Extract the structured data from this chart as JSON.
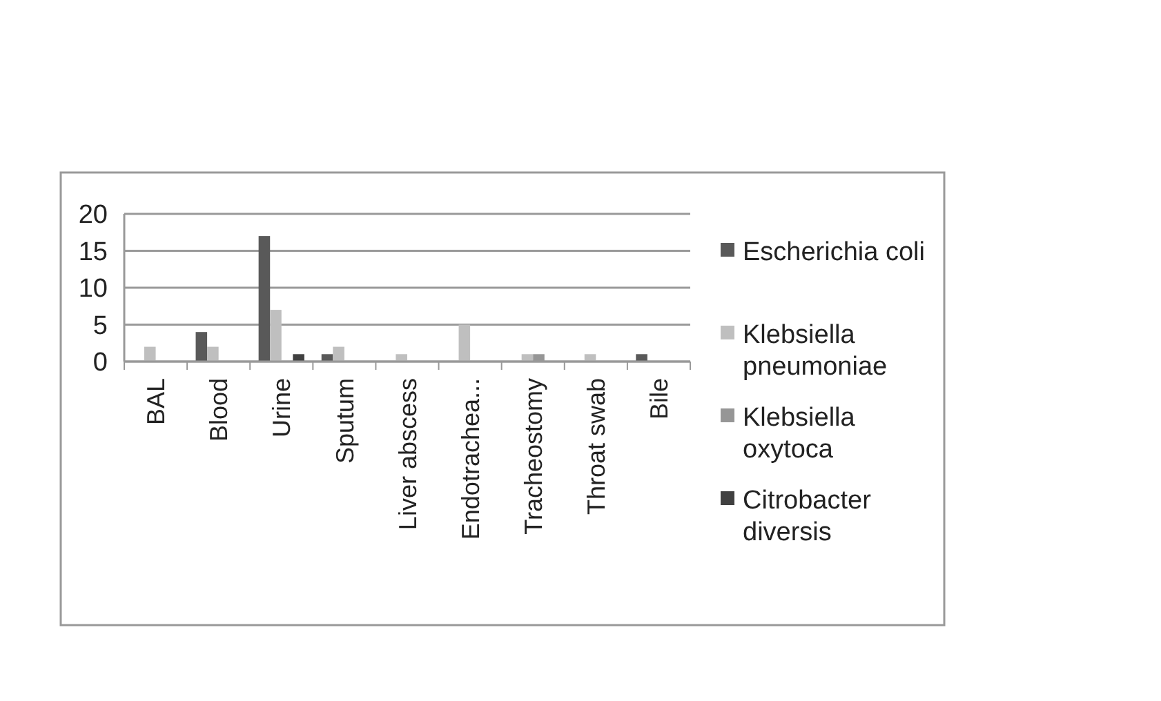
{
  "chart_data": {
    "type": "bar",
    "categories": [
      "BAL",
      "Blood",
      "Urine",
      "Sputum",
      "Liver abscess",
      "Endotrachea...",
      "Tracheostomy",
      "Throat swab",
      "Bile"
    ],
    "series": [
      {
        "name": "Escherichia coli",
        "color": "#595959",
        "values": [
          0,
          4,
          17,
          1,
          0,
          0,
          0,
          0,
          1
        ]
      },
      {
        "name": "Klebsiella pneumoniae",
        "color": "#bfbfbf",
        "values": [
          2,
          2,
          7,
          2,
          1,
          5,
          1,
          1,
          0
        ]
      },
      {
        "name": "Klebsiella oxytoca",
        "color": "#969696",
        "values": [
          0,
          0,
          0,
          0,
          0,
          0,
          1,
          0,
          0
        ]
      },
      {
        "name": "Citrobacter diversis",
        "color": "#404040",
        "values": [
          0,
          0,
          1,
          0,
          0,
          0,
          0,
          0,
          0
        ]
      }
    ],
    "ylim": [
      0,
      20
    ],
    "yticks": [
      0,
      5,
      10,
      15,
      20
    ],
    "grid": "y",
    "legend": "right"
  }
}
